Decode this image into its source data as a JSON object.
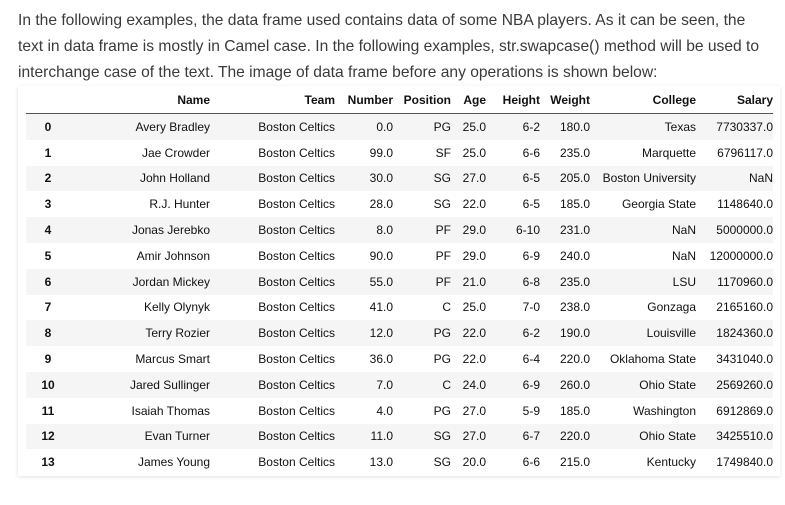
{
  "intro": {
    "text": "In the following examples, the data frame used contains data of some NBA players. As it can be seen, the text in data frame is mostly in Camel case. In the following examples, str.swapcase() method will be used to interchange case of the text. The image of data frame before any operations is shown below:"
  },
  "table": {
    "columns": [
      "",
      "Name",
      "Team",
      "Number",
      "Position",
      "Age",
      "Height",
      "Weight",
      "College",
      "Salary"
    ],
    "rows": [
      [
        "0",
        "Avery Bradley",
        "Boston Celtics",
        "0.0",
        "PG",
        "25.0",
        "6-2",
        "180.0",
        "Texas",
        "7730337.0"
      ],
      [
        "1",
        "Jae Crowder",
        "Boston Celtics",
        "99.0",
        "SF",
        "25.0",
        "6-6",
        "235.0",
        "Marquette",
        "6796117.0"
      ],
      [
        "2",
        "John Holland",
        "Boston Celtics",
        "30.0",
        "SG",
        "27.0",
        "6-5",
        "205.0",
        "Boston University",
        "NaN"
      ],
      [
        "3",
        "R.J. Hunter",
        "Boston Celtics",
        "28.0",
        "SG",
        "22.0",
        "6-5",
        "185.0",
        "Georgia State",
        "1148640.0"
      ],
      [
        "4",
        "Jonas Jerebko",
        "Boston Celtics",
        "8.0",
        "PF",
        "29.0",
        "6-10",
        "231.0",
        "NaN",
        "5000000.0"
      ],
      [
        "5",
        "Amir Johnson",
        "Boston Celtics",
        "90.0",
        "PF",
        "29.0",
        "6-9",
        "240.0",
        "NaN",
        "12000000.0"
      ],
      [
        "6",
        "Jordan Mickey",
        "Boston Celtics",
        "55.0",
        "PF",
        "21.0",
        "6-8",
        "235.0",
        "LSU",
        "1170960.0"
      ],
      [
        "7",
        "Kelly Olynyk",
        "Boston Celtics",
        "41.0",
        "C",
        "25.0",
        "7-0",
        "238.0",
        "Gonzaga",
        "2165160.0"
      ],
      [
        "8",
        "Terry Rozier",
        "Boston Celtics",
        "12.0",
        "PG",
        "22.0",
        "6-2",
        "190.0",
        "Louisville",
        "1824360.0"
      ],
      [
        "9",
        "Marcus Smart",
        "Boston Celtics",
        "36.0",
        "PG",
        "22.0",
        "6-4",
        "220.0",
        "Oklahoma State",
        "3431040.0"
      ],
      [
        "10",
        "Jared Sullinger",
        "Boston Celtics",
        "7.0",
        "C",
        "24.0",
        "6-9",
        "260.0",
        "Ohio State",
        "2569260.0"
      ],
      [
        "11",
        "Isaiah Thomas",
        "Boston Celtics",
        "4.0",
        "PG",
        "27.0",
        "5-9",
        "185.0",
        "Washington",
        "6912869.0"
      ],
      [
        "12",
        "Evan Turner",
        "Boston Celtics",
        "11.0",
        "SG",
        "27.0",
        "6-7",
        "220.0",
        "Ohio State",
        "3425510.0"
      ],
      [
        "13",
        "James Young",
        "Boston Celtics",
        "13.0",
        "SG",
        "20.0",
        "6-6",
        "215.0",
        "Kentucky",
        "1749840.0"
      ]
    ]
  }
}
